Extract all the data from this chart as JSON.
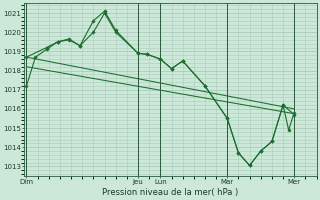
{
  "bg_color": "#cce8d8",
  "grid_color": "#aaccbb",
  "line_color": "#1a6e2e",
  "title": "Pression niveau de la mer( hPa )",
  "ylim": [
    1012.5,
    1021.5
  ],
  "yticks": [
    1013,
    1014,
    1015,
    1016,
    1017,
    1018,
    1019,
    1020,
    1021
  ],
  "xtick_labels": [
    "Dim",
    "Jeu",
    "Lun",
    "Mar",
    "Mer"
  ],
  "xtick_positions": [
    0.0,
    5.0,
    6.0,
    9.0,
    12.0
  ],
  "vline_positions": [
    0.0,
    5.0,
    6.0,
    9.0,
    12.0
  ],
  "xlim": [
    -0.1,
    13.0
  ],
  "s1_x": [
    0.0,
    0.4,
    0.9,
    1.4,
    1.9,
    2.4,
    3.0,
    3.5,
    4.0,
    5.0,
    5.4,
    6.0,
    6.5,
    7.0,
    8.0,
    9.0,
    9.5,
    10.0,
    10.5,
    11.0,
    11.5,
    11.75,
    12.0
  ],
  "s1_y": [
    1017.2,
    1018.7,
    1019.1,
    1019.5,
    1019.6,
    1019.3,
    1020.6,
    1021.1,
    1020.1,
    1018.9,
    1018.85,
    1018.6,
    1018.1,
    1018.5,
    1017.2,
    1015.5,
    1013.7,
    1013.05,
    1013.8,
    1014.3,
    1016.2,
    1014.9,
    1015.8
  ],
  "s2_x": [
    0.0,
    0.9,
    1.4,
    1.9,
    2.4,
    3.0,
    3.5,
    4.0,
    5.0,
    5.4,
    6.0,
    6.5,
    7.0,
    8.0,
    9.0,
    9.5,
    10.0,
    10.5,
    11.0,
    11.5,
    12.0
  ],
  "s2_y": [
    1018.7,
    1019.2,
    1019.5,
    1019.65,
    1019.3,
    1020.0,
    1021.0,
    1020.0,
    1018.9,
    1018.85,
    1018.6,
    1018.1,
    1018.5,
    1017.2,
    1015.5,
    1013.7,
    1013.05,
    1013.8,
    1014.3,
    1016.2,
    1015.7
  ],
  "trend1_x": [
    0.0,
    12.0
  ],
  "trend1_y": [
    1018.7,
    1016.0
  ],
  "trend2_x": [
    0.0,
    12.0
  ],
  "trend2_y": [
    1018.2,
    1015.75
  ]
}
